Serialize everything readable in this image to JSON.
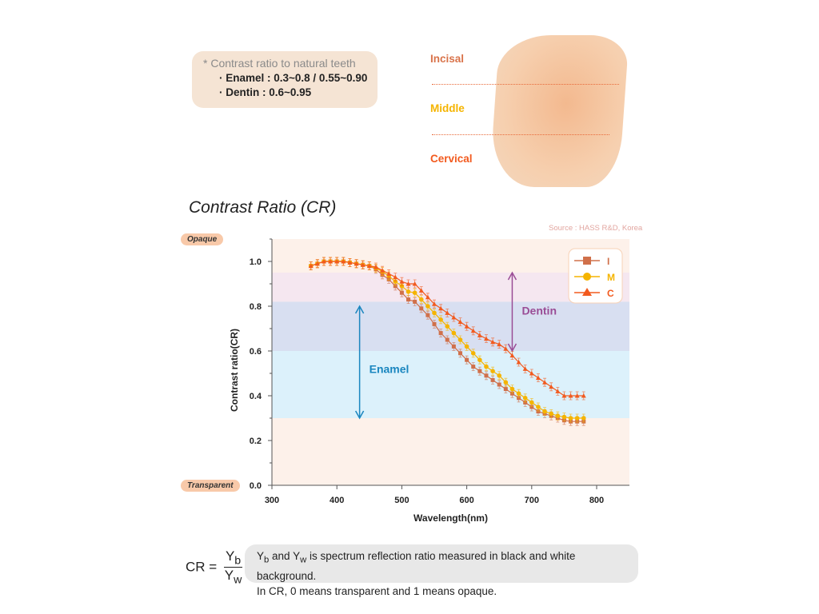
{
  "note": {
    "title": "* Contrast ratio to natural teeth",
    "enamel": "· Enamel : 0.3~0.8 / 0.55~0.90",
    "dentin": "· Dentin : 0.6~0.95"
  },
  "zones": {
    "incisal": "Incisal",
    "middle": "Middle",
    "cervical": "Cervical"
  },
  "heading": "Contrast Ratio (CR)",
  "source": "Source : HASS R&D, Korea",
  "opaque_label": "Opaque",
  "transparent_label": "Transparent",
  "formula": {
    "lhs": "CR =",
    "num": "Y",
    "num_sub": "b",
    "den": "Y",
    "den_sub": "w"
  },
  "description": {
    "line1_a": "Y",
    "line1_sub_b": "b",
    "line1_b": " and Y",
    "line1_sub_w": "w",
    "line1_c": " is spectrum reflection ratio measured in black and white background.",
    "line2": "In CR, 0 means transparent and 1 means opaque."
  },
  "colors": {
    "I": "#d0704a",
    "M": "#f5b400",
    "C": "#f25a1e",
    "enamel": "#1a86bf",
    "dentin": "#9a4d96"
  },
  "chart_data": {
    "type": "line",
    "title": "Contrast Ratio (CR)",
    "xlabel": "Wavelength(nm)",
    "ylabel": "Contrast ratio(CR)",
    "xlim": [
      300,
      850
    ],
    "ylim": [
      0,
      1.1
    ],
    "xticks": [
      300,
      400,
      500,
      600,
      700,
      800
    ],
    "yticks": [
      0.0,
      0.2,
      0.4,
      0.6,
      0.8,
      1.0
    ],
    "legend_position": "top-right",
    "x": [
      360,
      370,
      380,
      390,
      400,
      410,
      420,
      430,
      440,
      450,
      460,
      470,
      480,
      490,
      500,
      510,
      520,
      530,
      540,
      550,
      560,
      570,
      580,
      590,
      600,
      610,
      620,
      630,
      640,
      650,
      660,
      670,
      680,
      690,
      700,
      710,
      720,
      730,
      740,
      750,
      760,
      770,
      780
    ],
    "series": [
      {
        "name": "I",
        "marker": "square",
        "values": [
          0.98,
          0.99,
          1.0,
          1.0,
          1.0,
          1.0,
          0.995,
          0.99,
          0.985,
          0.98,
          0.965,
          0.94,
          0.92,
          0.89,
          0.86,
          0.83,
          0.82,
          0.79,
          0.76,
          0.72,
          0.68,
          0.65,
          0.62,
          0.59,
          0.56,
          0.53,
          0.51,
          0.49,
          0.47,
          0.45,
          0.43,
          0.41,
          0.39,
          0.37,
          0.35,
          0.33,
          0.32,
          0.31,
          0.3,
          0.29,
          0.285,
          0.285,
          0.285
        ]
      },
      {
        "name": "M",
        "marker": "circle",
        "values": [
          0.98,
          0.99,
          1.0,
          1.0,
          1.0,
          1.0,
          0.995,
          0.99,
          0.985,
          0.98,
          0.97,
          0.955,
          0.935,
          0.91,
          0.89,
          0.865,
          0.86,
          0.83,
          0.8,
          0.77,
          0.74,
          0.71,
          0.68,
          0.65,
          0.62,
          0.59,
          0.56,
          0.53,
          0.51,
          0.49,
          0.46,
          0.43,
          0.41,
          0.39,
          0.37,
          0.35,
          0.33,
          0.32,
          0.31,
          0.305,
          0.3,
          0.3,
          0.3
        ]
      },
      {
        "name": "C",
        "marker": "triangle",
        "values": [
          0.98,
          0.99,
          1.0,
          1.0,
          1.0,
          1.0,
          0.995,
          0.99,
          0.985,
          0.98,
          0.975,
          0.96,
          0.945,
          0.93,
          0.91,
          0.9,
          0.9,
          0.87,
          0.84,
          0.81,
          0.79,
          0.77,
          0.75,
          0.73,
          0.71,
          0.69,
          0.67,
          0.655,
          0.64,
          0.63,
          0.61,
          0.58,
          0.55,
          0.52,
          0.5,
          0.48,
          0.46,
          0.44,
          0.42,
          0.4,
          0.4,
          0.4,
          0.4
        ]
      }
    ],
    "bands": [
      {
        "from": 0.3,
        "to": 0.6,
        "color": "#dcf1fb"
      },
      {
        "from": 0.6,
        "to": 0.82,
        "color": "#d8dff1"
      },
      {
        "from": 0.82,
        "to": 0.95,
        "color": "#f5e7f0"
      }
    ],
    "annotations": [
      {
        "text": "Enamel",
        "x": 435,
        "from": 0.3,
        "to": 0.8
      },
      {
        "text": "Dentin",
        "x": 670,
        "from": 0.6,
        "to": 0.95
      }
    ]
  }
}
